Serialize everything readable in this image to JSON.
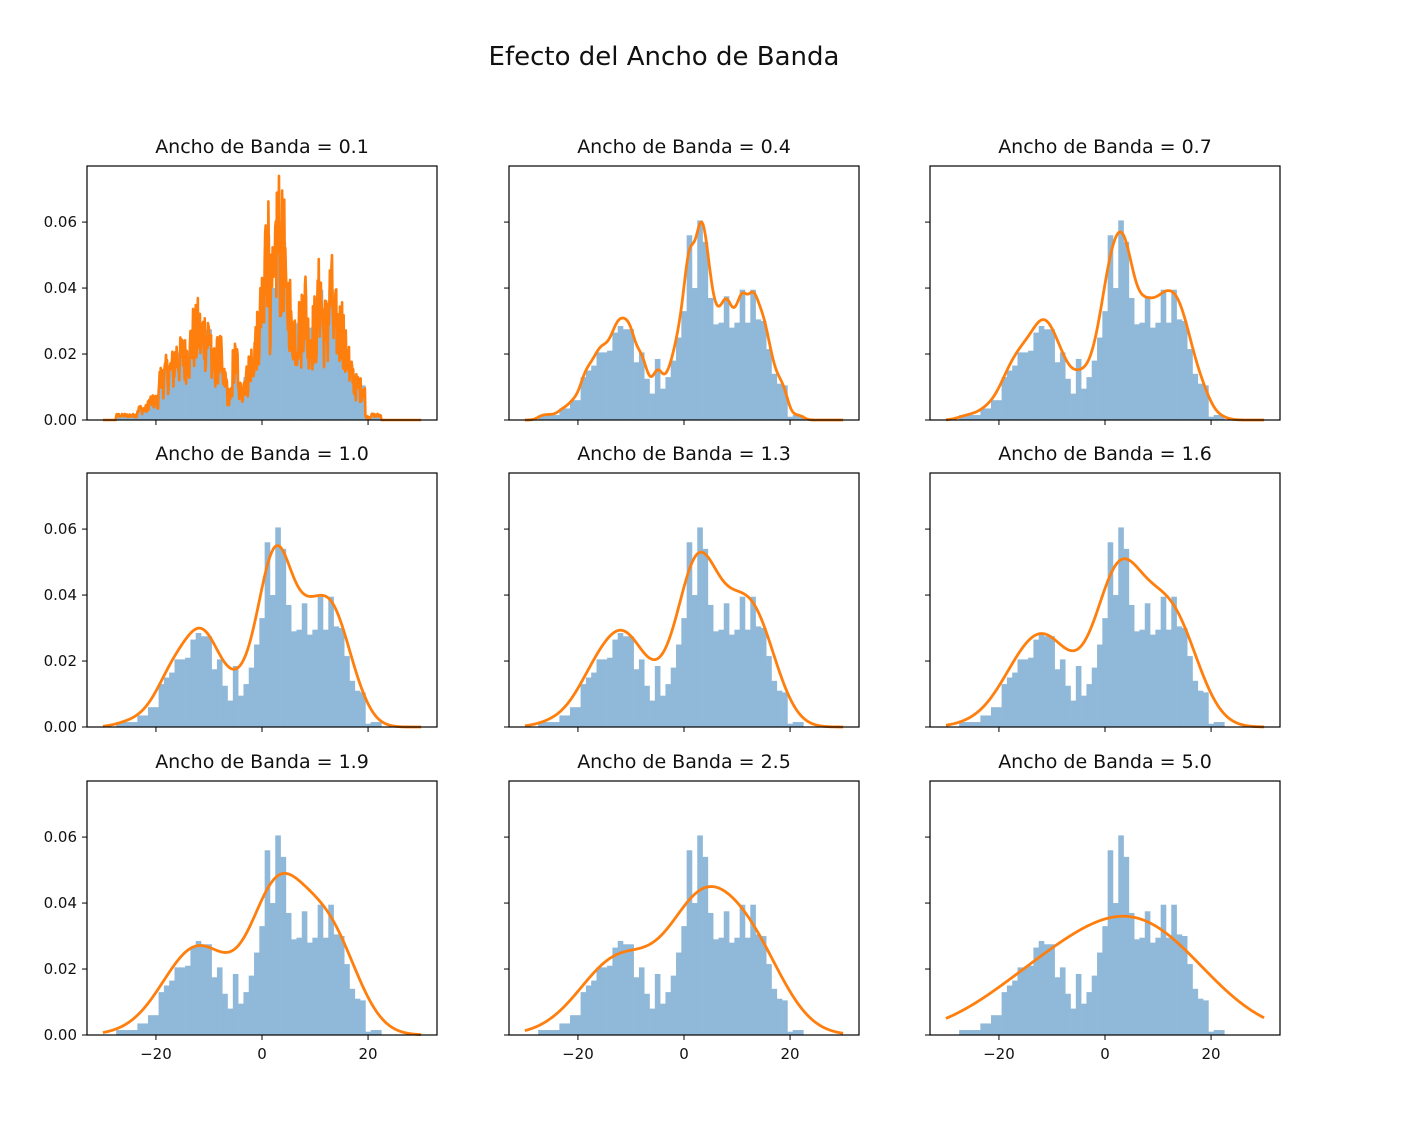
{
  "figure": {
    "title": "Efecto del Ancho de Banda"
  },
  "colors": {
    "histogram": "#8fb8d9",
    "kde": "#ff7f0e",
    "axes": "#000000"
  },
  "chart_data": {
    "type": "grid_of_histograms_with_kde",
    "layout": {
      "rows": 3,
      "cols": 3
    },
    "shared_x": {
      "lim": [
        -33,
        33
      ],
      "ticks": [
        -20,
        0,
        20
      ],
      "tick_labels": [
        "−20",
        "0",
        "20"
      ]
    },
    "shared_y": {
      "lim": [
        0,
        0.077
      ],
      "ticks": [
        0.0,
        0.02,
        0.04,
        0.06
      ],
      "tick_labels": [
        "0.00",
        "0.02",
        "0.04",
        "0.06"
      ]
    },
    "histogram": {
      "bin_start": -27.5,
      "bin_width": 1.0,
      "heights": [
        0.0015,
        0.0015,
        0.0015,
        0.0015,
        0.0035,
        0.0035,
        0.006,
        0.006,
        0.013,
        0.015,
        0.0165,
        0.0205,
        0.0205,
        0.021,
        0.0265,
        0.0285,
        0.0275,
        0.0275,
        0.0175,
        0.0205,
        0.0125,
        0.008,
        0.0185,
        0.0095,
        0.013,
        0.018,
        0.025,
        0.033,
        0.056,
        0.04,
        0.0605,
        0.054,
        0.037,
        0.029,
        0.0295,
        0.0375,
        0.028,
        0.0295,
        0.0395,
        0.0295,
        0.0395,
        0.0305,
        0.03,
        0.0215,
        0.014,
        0.011,
        0.0105,
        0.001,
        0.0015,
        0.0015
      ]
    },
    "kde_x_range": [
      -30,
      30
    ],
    "panels": [
      {
        "title": "Ancho de Banda = 0.1",
        "bandwidth": 0.1,
        "kde_peak": 0.074
      },
      {
        "title": "Ancho de Banda = 0.4",
        "bandwidth": 0.4,
        "kde_peak": 0.06
      },
      {
        "title": "Ancho de Banda = 0.7",
        "bandwidth": 0.7,
        "kde_peak": 0.057
      },
      {
        "title": "Ancho de Banda = 1.0",
        "bandwidth": 1.0,
        "kde_peak": 0.055
      },
      {
        "title": "Ancho de Banda = 1.3",
        "bandwidth": 1.3,
        "kde_peak": 0.053
      },
      {
        "title": "Ancho de Banda = 1.6",
        "bandwidth": 1.6,
        "kde_peak": 0.051
      },
      {
        "title": "Ancho de Banda = 1.9",
        "bandwidth": 1.9,
        "kde_peak": 0.049
      },
      {
        "title": "Ancho de Banda = 2.5",
        "bandwidth": 2.5,
        "kde_peak": 0.045
      },
      {
        "title": "Ancho de Banda = 5.0",
        "bandwidth": 5.0,
        "kde_peak": 0.036
      }
    ]
  }
}
